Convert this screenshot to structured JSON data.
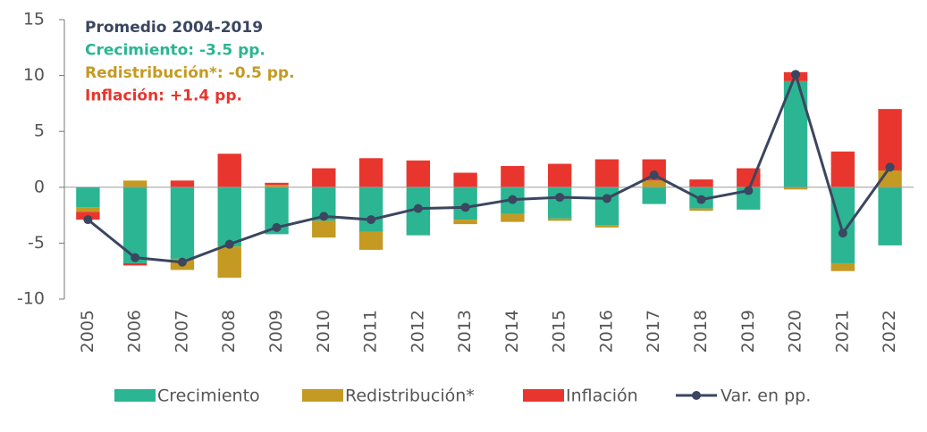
{
  "chart_data": {
    "type": "bar",
    "stacked": true,
    "annotations": [
      {
        "text": "Promedio 2004-2019",
        "color": "#3b4660"
      },
      {
        "text": "Crecimiento: -3.5 pp.",
        "color": "#2bb592"
      },
      {
        "text": "Redistribución*: -0.5 pp.",
        "color": "#c49a22"
      },
      {
        "text": "Inflación: +1.4 pp.",
        "color": "#e8362e"
      }
    ],
    "categories": [
      "2005",
      "2006",
      "2007",
      "2008",
      "2009",
      "2010",
      "2011",
      "2012",
      "2013",
      "2014",
      "2015",
      "2016",
      "2017",
      "2018",
      "2019",
      "2020",
      "2021",
      "2022"
    ],
    "series": [
      {
        "name": "Crecimiento",
        "color": "#2bb592",
        "values": [
          -1.8,
          -6.8,
          -6.4,
          -5.3,
          -4.2,
          -3.0,
          -4.0,
          -4.3,
          -2.9,
          -2.4,
          -2.8,
          -3.4,
          -1.5,
          -1.9,
          -2.0,
          9.5,
          -6.8,
          -5.2
        ]
      },
      {
        "name": "Redistribución*",
        "color": "#c49a22",
        "values": [
          -0.4,
          0.6,
          -1.0,
          -2.8,
          0.2,
          -1.5,
          -1.6,
          0,
          -0.4,
          -0.7,
          -0.2,
          -0.2,
          0.6,
          -0.2,
          0,
          -0.2,
          -0.7,
          1.5
        ]
      },
      {
        "name": "Inflación",
        "color": "#e8362e",
        "values": [
          -0.7,
          -0.2,
          0.6,
          3.0,
          0.2,
          1.7,
          2.6,
          2.4,
          1.3,
          1.9,
          2.1,
          2.5,
          1.9,
          0.7,
          1.7,
          0.8,
          3.2,
          5.5
        ]
      }
    ],
    "line": {
      "name": "Var. en pp.",
      "color": "#3b4660",
      "values": [
        -2.9,
        -6.3,
        -6.7,
        -5.1,
        -3.6,
        -2.6,
        -2.9,
        -1.9,
        -1.8,
        -1.1,
        -0.9,
        -1.0,
        1.1,
        -1.1,
        -0.3,
        10.1,
        -4.1,
        1.8
      ]
    },
    "ylim": [
      -10,
      15
    ],
    "yticks": [
      -10,
      -5,
      0,
      5,
      10,
      15
    ],
    "grid": false
  }
}
